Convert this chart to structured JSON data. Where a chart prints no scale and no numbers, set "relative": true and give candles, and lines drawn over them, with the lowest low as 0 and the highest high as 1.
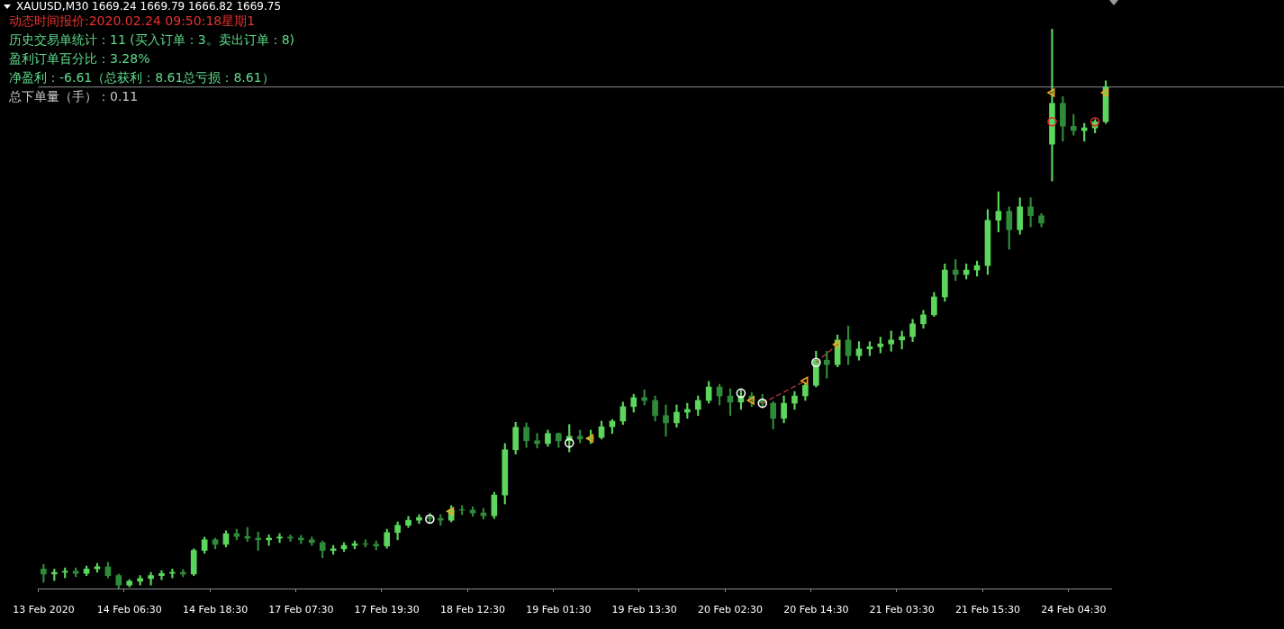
{
  "chart_data": {
    "type": "candlestick",
    "title": "XAUUSD,M30 1669.24 1669.79 1666.82 1669.75",
    "annotations": [
      "动态时间报价:2020.02.24 09:50:18星期1",
      "历史交易单统计：11 (买入订单：3。卖出订单：8)",
      "盈利订单百分比：3.28%",
      "净盈利：-6.61（总获利：8.61总亏损：8.61）",
      "总下单量（手）：0.11"
    ],
    "relative": true,
    "categories": [
      "13 Feb 2020",
      null,
      null,
      null,
      null,
      null,
      null,
      null,
      "14 Feb 06:30",
      null,
      null,
      null,
      null,
      null,
      null,
      null,
      "14 Feb 18:30",
      null,
      null,
      null,
      null,
      null,
      null,
      null,
      "17 Feb 07:30",
      null,
      null,
      null,
      null,
      null,
      null,
      null,
      "17 Feb 19:30",
      null,
      null,
      null,
      null,
      null,
      null,
      null,
      "18 Feb 12:30",
      null,
      null,
      null,
      null,
      null,
      null,
      null,
      "19 Feb 01:30",
      null,
      null,
      null,
      null,
      null,
      null,
      null,
      "19 Feb 13:30",
      null,
      null,
      null,
      null,
      null,
      null,
      null,
      "20 Feb 02:30",
      null,
      null,
      null,
      null,
      null,
      null,
      null,
      "20 Feb 14:30",
      null,
      null,
      null,
      null,
      null,
      null,
      null,
      "21 Feb 03:30",
      null,
      null,
      null,
      null,
      null,
      null,
      null,
      "21 Feb 15:30",
      null,
      null,
      null,
      null,
      null,
      null,
      null,
      "24 Feb 04:30",
      null,
      null,
      null
    ],
    "ohlc": [
      [
        0.035,
        0.043,
        0.011,
        0.026
      ],
      [
        0.026,
        0.035,
        0.014,
        0.029
      ],
      [
        0.029,
        0.037,
        0.019,
        0.031
      ],
      [
        0.031,
        0.037,
        0.021,
        0.027
      ],
      [
        0.027,
        0.04,
        0.023,
        0.035
      ],
      [
        0.035,
        0.045,
        0.029,
        0.039
      ],
      [
        0.039,
        0.047,
        0.019,
        0.023
      ],
      [
        0.023,
        0.026,
        0,
        0.006
      ],
      [
        0.006,
        0.016,
        0.003,
        0.013
      ],
      [
        0.013,
        0.023,
        0.006,
        0.018
      ],
      [
        0.018,
        0.029,
        0.006,
        0.023
      ],
      [
        0.023,
        0.032,
        0.016,
        0.027
      ],
      [
        0.027,
        0.035,
        0.019,
        0.029
      ],
      [
        0.029,
        0.034,
        0.021,
        0.026
      ],
      [
        0.026,
        0.071,
        0.023,
        0.068
      ],
      [
        0.068,
        0.092,
        0.063,
        0.087
      ],
      [
        0.087,
        0.09,
        0.071,
        0.079
      ],
      [
        0.079,
        0.103,
        0.074,
        0.098
      ],
      [
        0.098,
        0.106,
        0.087,
        0.093
      ],
      [
        0.093,
        0.109,
        0.084,
        0.09
      ],
      [
        0.09,
        0.101,
        0.068,
        0.087
      ],
      [
        0.087,
        0.096,
        0.077,
        0.09
      ],
      [
        0.09,
        0.098,
        0.082,
        0.092
      ],
      [
        0.092,
        0.096,
        0.084,
        0.09
      ],
      [
        0.09,
        0.095,
        0.08,
        0.087
      ],
      [
        0.087,
        0.092,
        0.077,
        0.082
      ],
      [
        0.082,
        0.085,
        0.055,
        0.068
      ],
      [
        0.068,
        0.077,
        0.061,
        0.071
      ],
      [
        0.071,
        0.082,
        0.066,
        0.077
      ],
      [
        0.077,
        0.085,
        0.071,
        0.08
      ],
      [
        0.08,
        0.087,
        0.074,
        0.079
      ],
      [
        0.079,
        0.085,
        0.069,
        0.076
      ],
      [
        0.076,
        0.106,
        0.072,
        0.1
      ],
      [
        0.1,
        0.119,
        0.087,
        0.113
      ],
      [
        0.113,
        0.129,
        0.109,
        0.122
      ],
      [
        0.122,
        0.132,
        0.116,
        0.127
      ],
      [
        0.127,
        0.135,
        0.119,
        0.125
      ],
      [
        0.125,
        0.132,
        0.113,
        0.122
      ],
      [
        0.122,
        0.148,
        0.119,
        0.141
      ],
      [
        0.141,
        0.148,
        0.132,
        0.14
      ],
      [
        0.14,
        0.146,
        0.129,
        0.135
      ],
      [
        0.135,
        0.143,
        0.124,
        0.13
      ],
      [
        0.13,
        0.172,
        0.125,
        0.167
      ],
      [
        0.167,
        0.259,
        0.151,
        0.248
      ],
      [
        0.248,
        0.297,
        0.24,
        0.288
      ],
      [
        0.288,
        0.296,
        0.252,
        0.264
      ],
      [
        0.264,
        0.277,
        0.251,
        0.259
      ],
      [
        0.259,
        0.283,
        0.254,
        0.277
      ],
      [
        0.277,
        0.278,
        0.252,
        0.264
      ],
      [
        0.264,
        0.293,
        0.244,
        0.272
      ],
      [
        0.272,
        0.283,
        0.26,
        0.267
      ],
      [
        0.267,
        0.283,
        0.259,
        0.27
      ],
      [
        0.27,
        0.299,
        0.267,
        0.289
      ],
      [
        0.289,
        0.302,
        0.277,
        0.299
      ],
      [
        0.299,
        0.333,
        0.293,
        0.325
      ],
      [
        0.325,
        0.347,
        0.315,
        0.341
      ],
      [
        0.341,
        0.355,
        0.328,
        0.336
      ],
      [
        0.336,
        0.344,
        0.299,
        0.309
      ],
      [
        0.309,
        0.328,
        0.272,
        0.296
      ],
      [
        0.296,
        0.328,
        0.288,
        0.315
      ],
      [
        0.315,
        0.331,
        0.304,
        0.32
      ],
      [
        0.32,
        0.344,
        0.309,
        0.336
      ],
      [
        0.336,
        0.37,
        0.331,
        0.36
      ],
      [
        0.36,
        0.365,
        0.328,
        0.344
      ],
      [
        0.344,
        0.357,
        0.309,
        0.333
      ],
      [
        0.333,
        0.354,
        0.32,
        0.344
      ],
      [
        0.344,
        0.35,
        0.325,
        0.336
      ],
      [
        0.336,
        0.347,
        0.325,
        0.331
      ],
      [
        0.331,
        0.334,
        0.285,
        0.304
      ],
      [
        0.304,
        0.344,
        0.296,
        0.331
      ],
      [
        0.331,
        0.352,
        0.32,
        0.344
      ],
      [
        0.344,
        0.368,
        0.336,
        0.363
      ],
      [
        0.363,
        0.424,
        0.36,
        0.408
      ],
      [
        0.408,
        0.424,
        0.376,
        0.4
      ],
      [
        0.4,
        0.453,
        0.396,
        0.444
      ],
      [
        0.444,
        0.469,
        0.4,
        0.416
      ],
      [
        0.416,
        0.441,
        0.408,
        0.428
      ],
      [
        0.428,
        0.441,
        0.416,
        0.432
      ],
      [
        0.432,
        0.449,
        0.421,
        0.437
      ],
      [
        0.437,
        0.46,
        0.424,
        0.444
      ],
      [
        0.444,
        0.46,
        0.428,
        0.45
      ],
      [
        0.45,
        0.481,
        0.441,
        0.473
      ],
      [
        0.473,
        0.497,
        0.465,
        0.489
      ],
      [
        0.489,
        0.529,
        0.486,
        0.521
      ],
      [
        0.521,
        0.58,
        0.513,
        0.569
      ],
      [
        0.569,
        0.588,
        0.55,
        0.561
      ],
      [
        0.561,
        0.58,
        0.553,
        0.569
      ],
      [
        0.569,
        0.585,
        0.558,
        0.577
      ],
      [
        0.577,
        0.677,
        0.561,
        0.658
      ],
      [
        0.658,
        0.709,
        0.637,
        0.674
      ],
      [
        0.674,
        0.682,
        0.606,
        0.641
      ],
      [
        0.641,
        0.698,
        0.633,
        0.682
      ],
      [
        0.682,
        0.698,
        0.646,
        0.666
      ],
      [
        0.666,
        0.67,
        0.646,
        0.653
      ],
      [
        0.794,
        1,
        0.728,
        0.867
      ],
      [
        0.867,
        0.879,
        0.799,
        0.826
      ],
      [
        0.826,
        0.847,
        0.81,
        0.818
      ],
      [
        0.818,
        0.831,
        0.799,
        0.823
      ],
      [
        0.823,
        0.838,
        0.814,
        0.834
      ],
      [
        0.834,
        0.907,
        0.831,
        0.896
      ]
    ],
    "colors": [
      "#2e8b3a",
      "#5cd65c",
      "#5cd65c",
      "#2e8b3a",
      "#5cd65c",
      "#5cd65c",
      "#2e8b3a",
      "#2e8b3a",
      "#5cd65c",
      "#5cd65c",
      "#5cd65c",
      "#5cd65c",
      "#5cd65c",
      "#2e8b3a",
      "#5cd65c",
      "#5cd65c",
      "#2e8b3a",
      "#5cd65c",
      "#2e8b3a",
      "#2e8b3a",
      "#2e8b3a",
      "#5cd65c",
      "#5cd65c",
      "#2e8b3a",
      "#2e8b3a",
      "#2e8b3a",
      "#2e8b3a",
      "#5cd65c",
      "#5cd65c",
      "#5cd65c",
      "#2e8b3a",
      "#2e8b3a",
      "#5cd65c",
      "#5cd65c",
      "#5cd65c",
      "#5cd65c",
      "#2e8b3a",
      "#2e8b3a",
      "#5cd65c",
      "#2e8b3a",
      "#2e8b3a",
      "#2e8b3a",
      "#5cd65c",
      "#5cd65c",
      "#5cd65c",
      "#2e8b3a",
      "#2e8b3a",
      "#5cd65c",
      "#2e8b3a",
      "#5cd65c",
      "#2e8b3a",
      "#5cd65c",
      "#5cd65c",
      "#5cd65c",
      "#5cd65c",
      "#5cd65c",
      "#2e8b3a",
      "#2e8b3a",
      "#2e8b3a",
      "#5cd65c",
      "#5cd65c",
      "#5cd65c",
      "#5cd65c",
      "#2e8b3a",
      "#2e8b3a",
      "#5cd65c",
      "#2e8b3a",
      "#2e8b3a",
      "#2e8b3a",
      "#5cd65c",
      "#5cd65c",
      "#5cd65c",
      "#5cd65c",
      "#2e8b3a",
      "#5cd65c",
      "#2e8b3a",
      "#5cd65c",
      "#5cd65c",
      "#5cd65c",
      "#5cd65c",
      "#5cd65c",
      "#5cd65c",
      "#5cd65c",
      "#5cd65c",
      "#5cd65c",
      "#2e8b3a",
      "#5cd65c",
      "#5cd65c",
      "#5cd65c",
      "#5cd65c",
      "#2e8b3a",
      "#5cd65c",
      "#2e8b3a",
      "#2e8b3a",
      "#5cd65c",
      "#2e8b3a",
      "#2e8b3a",
      "#5cd65c",
      "#5cd65c",
      "#5cd65c"
    ],
    "ref_lines": [
      {
        "axis": "y",
        "value": 0.896,
        "color": "#8c8c8c"
      }
    ],
    "series": [
      {
        "type": "scatter",
        "color": "#f5a623",
        "marker": "triangle",
        "values": [
          null,
          null,
          null,
          null,
          null,
          null,
          null,
          null,
          null,
          null,
          null,
          null,
          null,
          null,
          null,
          null,
          null,
          null,
          null,
          null,
          null,
          null,
          null,
          null,
          null,
          null,
          null,
          null,
          null,
          null,
          null,
          null,
          null,
          null,
          null,
          null,
          null,
          null,
          0.138,
          null,
          null,
          null,
          null,
          null,
          null,
          null,
          null,
          null,
          null,
          null,
          null,
          0.268,
          null,
          null,
          null,
          null,
          null,
          null,
          null,
          null,
          null,
          null,
          null,
          null,
          null,
          null,
          0.336,
          null,
          null,
          null,
          null,
          0.371,
          null,
          null,
          0.436,
          null,
          null,
          null,
          null,
          null,
          null,
          null,
          null,
          null,
          null,
          null,
          null,
          null,
          null,
          null,
          null,
          null,
          null,
          null,
          0.886,
          null,
          null,
          null,
          null,
          0.886
        ]
      },
      {
        "type": "scatter",
        "color": "#ffffff",
        "marker": "circle",
        "values": [
          null,
          null,
          null,
          null,
          null,
          null,
          null,
          null,
          null,
          null,
          null,
          null,
          null,
          null,
          null,
          null,
          null,
          null,
          null,
          null,
          null,
          null,
          null,
          null,
          null,
          null,
          null,
          null,
          null,
          null,
          null,
          null,
          null,
          null,
          null,
          null,
          0.124,
          null,
          null,
          null,
          null,
          null,
          null,
          null,
          null,
          null,
          null,
          null,
          null,
          0.26,
          null,
          null,
          null,
          null,
          null,
          null,
          null,
          null,
          null,
          null,
          null,
          null,
          null,
          null,
          null,
          0.349,
          null,
          0.331,
          null,
          null,
          null,
          null,
          0.404,
          null,
          null,
          null,
          null,
          null,
          null,
          null,
          null,
          null,
          null,
          null,
          null,
          null,
          null,
          null,
          null,
          null,
          null,
          null,
          null,
          null,
          null,
          null,
          null,
          null,
          null,
          null
        ]
      },
      {
        "type": "scatter",
        "color": "#e8262a",
        "marker": "circle",
        "values": [
          null,
          null,
          null,
          null,
          null,
          null,
          null,
          null,
          null,
          null,
          null,
          null,
          null,
          null,
          null,
          null,
          null,
          null,
          null,
          null,
          null,
          null,
          null,
          null,
          null,
          null,
          null,
          null,
          null,
          null,
          null,
          null,
          null,
          null,
          null,
          null,
          null,
          null,
          null,
          null,
          null,
          null,
          null,
          null,
          null,
          null,
          null,
          null,
          null,
          null,
          null,
          null,
          null,
          null,
          null,
          null,
          null,
          null,
          null,
          null,
          null,
          null,
          null,
          null,
          null,
          null,
          null,
          null,
          null,
          null,
          null,
          null,
          null,
          null,
          null,
          null,
          null,
          null,
          null,
          null,
          null,
          null,
          null,
          null,
          null,
          null,
          null,
          null,
          null,
          null,
          null,
          null,
          null,
          null,
          0.834,
          null,
          null,
          null,
          0.834,
          null
        ]
      },
      {
        "type": "line",
        "color": "#c8383a",
        "line_style": "dashed",
        "values": [
          null,
          null,
          null,
          null,
          null,
          null,
          null,
          null,
          null,
          null,
          null,
          null,
          null,
          null,
          null,
          null,
          null,
          null,
          null,
          null,
          null,
          null,
          null,
          null,
          null,
          null,
          null,
          null,
          null,
          null,
          null,
          null,
          null,
          null,
          null,
          null,
          null,
          null,
          null,
          null,
          null,
          null,
          null,
          null,
          null,
          null,
          null,
          null,
          null,
          null,
          null,
          null,
          null,
          null,
          null,
          null,
          null,
          null,
          null,
          null,
          null,
          null,
          null,
          null,
          null,
          null,
          null,
          0.331,
          null,
          null,
          null,
          0.371,
          null,
          null,
          null,
          null,
          null,
          null,
          null,
          null,
          null,
          null,
          null,
          null,
          null,
          null,
          null,
          null,
          null,
          null,
          null,
          null,
          null,
          null,
          null,
          null,
          null,
          null,
          null,
          null
        ]
      },
      {
        "type": "line",
        "color": "#c8383a",
        "line_style": "dashed",
        "values": [
          null,
          null,
          null,
          null,
          null,
          null,
          null,
          null,
          null,
          null,
          null,
          null,
          null,
          null,
          null,
          null,
          null,
          null,
          null,
          null,
          null,
          null,
          null,
          null,
          null,
          null,
          null,
          null,
          null,
          null,
          null,
          null,
          null,
          null,
          null,
          null,
          null,
          null,
          null,
          null,
          null,
          null,
          null,
          null,
          null,
          null,
          null,
          null,
          null,
          null,
          null,
          null,
          null,
          null,
          null,
          null,
          null,
          null,
          null,
          null,
          null,
          null,
          null,
          null,
          null,
          null,
          null,
          null,
          null,
          null,
          null,
          null,
          0.404,
          null,
          0.436,
          null,
          null,
          null,
          null,
          null,
          null,
          null,
          null,
          null,
          null,
          null,
          null,
          null,
          null,
          null,
          null,
          null,
          null,
          null,
          null,
          null,
          null,
          null,
          null,
          null
        ]
      }
    ]
  }
}
